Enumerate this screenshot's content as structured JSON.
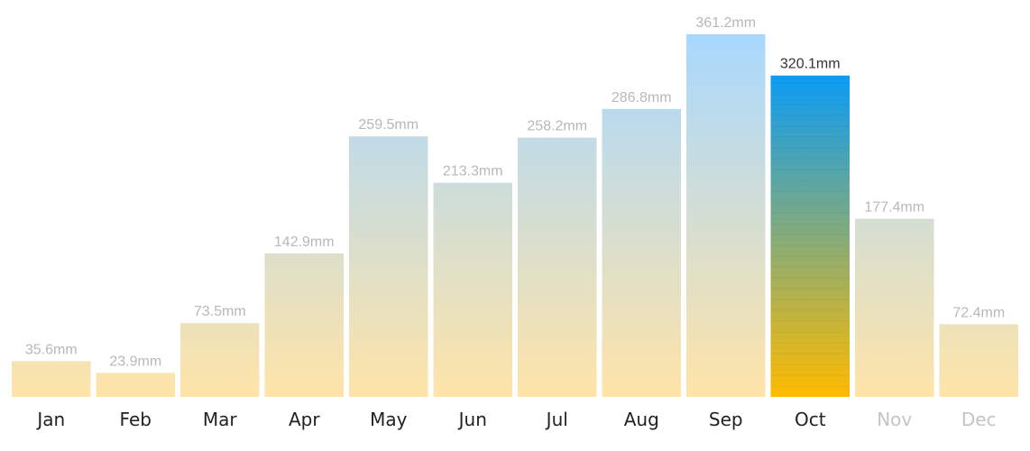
{
  "chart_data": {
    "type": "bar",
    "categories": [
      "Jan",
      "Feb",
      "Mar",
      "Apr",
      "May",
      "Jun",
      "Jul",
      "Aug",
      "Sep",
      "Oct",
      "Nov",
      "Dec"
    ],
    "values": [
      35.6,
      23.9,
      73.5,
      142.9,
      259.5,
      213.3,
      258.2,
      286.8,
      361.2,
      320.1,
      177.4,
      72.4
    ],
    "data_labels": [
      "35.6mm",
      "23.9mm",
      "73.5mm",
      "142.9mm",
      "259.5mm",
      "213.3mm",
      "258.2mm",
      "286.8mm",
      "361.2mm",
      "320.1mm",
      "177.4mm",
      "72.4mm"
    ],
    "unit": "mm",
    "ylim": [
      0,
      361.2
    ],
    "highlighted_category": "Oct",
    "dimmed_categories": [
      "Nov",
      "Dec"
    ],
    "grid": false,
    "colors": {
      "low": "#ffe4a8",
      "high": "#a8d8ff",
      "highlight_top": "#0b9cf5",
      "highlight_bottom": "#ffbb00",
      "label_muted": "#b8b8b8",
      "label_active": "#333333",
      "month_text": "#222222",
      "month_dimmed": "#c4c4c4"
    }
  }
}
